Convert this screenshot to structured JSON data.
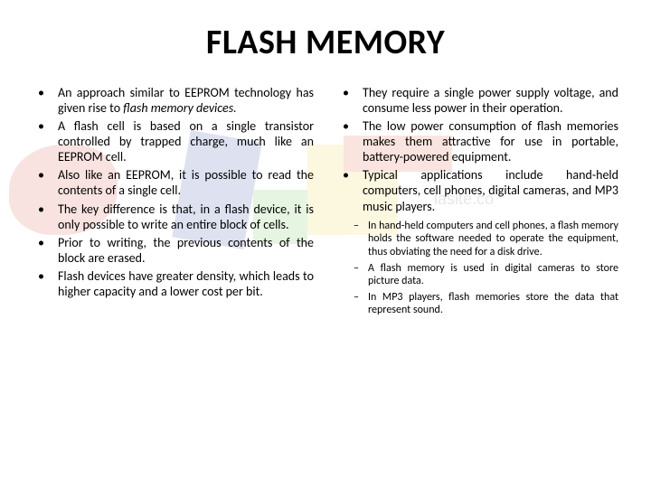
{
  "title": "FLASH MEMORY",
  "leftColumn": {
    "items": [
      {
        "pre": "An approach similar to EEPROM technology has given rise to ",
        "italic": "flash memory devices.",
        "post": ""
      },
      {
        "text": "A flash cell is based on a single transistor controlled by trapped charge, much like an EEPROM cell."
      },
      {
        "text": "Also like an EEPROM, it is possible to read the contents of a single cell."
      },
      {
        "text": "The key difference is that, in a flash device, it is only possible to write an entire block of cells."
      },
      {
        "text": "Prior to writing, the previous contents of the block are erased."
      },
      {
        "text": "Flash devices have greater density, which leads to higher capacity and a lower cost per bit."
      }
    ]
  },
  "rightColumn": {
    "items": [
      {
        "text": "They require a single power supply voltage, and consume less power in their operation."
      },
      {
        "text": "The low power consumption of flash memories makes them attractive for use in portable, battery-powered equipment."
      },
      {
        "text": "Typical applications include hand-held computers, cell phones, digital cameras, and MP3 music players."
      }
    ],
    "subItems": [
      {
        "text": "In hand-held computers and cell phones, a flash memory holds the software needed to operate the equipment, thus obviating the need for a disk drive."
      },
      {
        "text": "A flash memory is used in digital cameras to store picture data."
      },
      {
        "text": "In MP3 players, flash memories store the data that represent sound."
      }
    ]
  }
}
